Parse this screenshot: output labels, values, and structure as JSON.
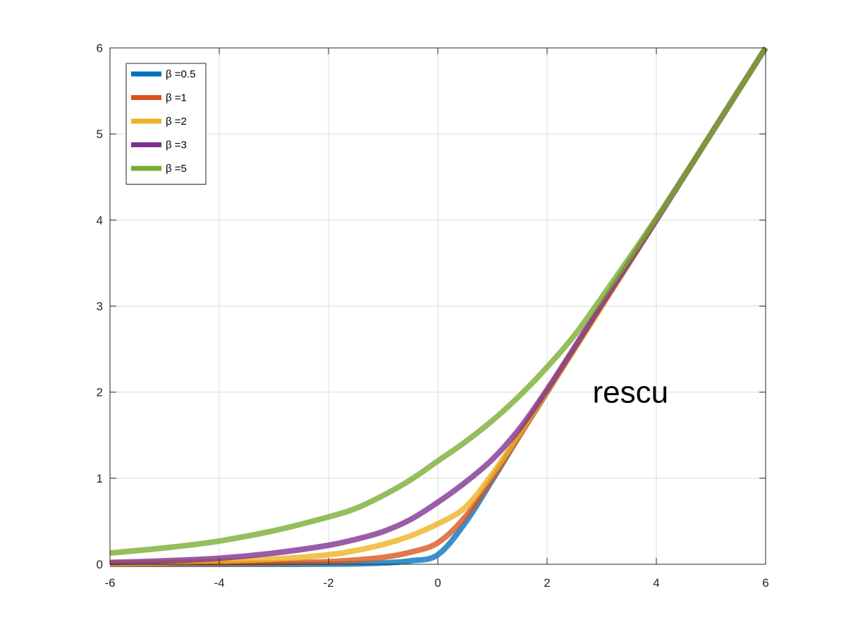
{
  "chart_data": {
    "type": "line",
    "title": "",
    "xlabel": "",
    "ylabel": "",
    "xlim": [
      -6,
      6
    ],
    "ylim": [
      0,
      6
    ],
    "xticks": [
      -6,
      -4,
      -2,
      0,
      2,
      4,
      6
    ],
    "yticks": [
      0,
      1,
      2,
      3,
      4,
      5,
      6
    ],
    "grid": true,
    "legend_position": "top-left",
    "annotation": {
      "text": "rescu",
      "x": 3,
      "y": 2
    },
    "x": [
      -6,
      -5,
      -4,
      -3,
      -2,
      -1.5,
      -1,
      -0.5,
      0,
      0.5,
      1,
      1.5,
      2,
      2.5,
      3,
      4,
      5,
      6
    ],
    "series": [
      {
        "name": "β =0.5",
        "color": "#0072BD",
        "values": [
          0,
          0,
          0,
          0,
          0.002,
          0.005,
          0.015,
          0.04,
          0.11,
          0.48,
          0.98,
          1.5,
          2.0,
          2.5,
          3.0,
          4.0,
          5.0,
          6.0
        ]
      },
      {
        "name": "β =1",
        "color": "#D95319",
        "values": [
          0.003,
          0.005,
          0.008,
          0.015,
          0.03,
          0.05,
          0.08,
          0.14,
          0.25,
          0.55,
          1.0,
          1.5,
          2.0,
          2.5,
          3.0,
          4.0,
          5.0,
          6.0
        ]
      },
      {
        "name": "β =2",
        "color": "#EDB120",
        "values": [
          0.01,
          0.02,
          0.035,
          0.06,
          0.11,
          0.16,
          0.23,
          0.33,
          0.47,
          0.66,
          1.05,
          1.52,
          2.01,
          2.5,
          3.0,
          4.0,
          5.0,
          6.0
        ]
      },
      {
        "name": "β =3",
        "color": "#7E2F8E",
        "values": [
          0.02,
          0.04,
          0.07,
          0.13,
          0.22,
          0.29,
          0.38,
          0.52,
          0.72,
          0.95,
          1.22,
          1.58,
          2.03,
          2.52,
          3.02,
          4.0,
          5.0,
          6.0
        ]
      },
      {
        "name": "β =5",
        "color": "#77AC30",
        "values": [
          0.13,
          0.19,
          0.27,
          0.39,
          0.55,
          0.65,
          0.8,
          0.98,
          1.2,
          1.42,
          1.67,
          1.96,
          2.29,
          2.66,
          3.1,
          4.02,
          5.0,
          6.0
        ]
      }
    ]
  }
}
